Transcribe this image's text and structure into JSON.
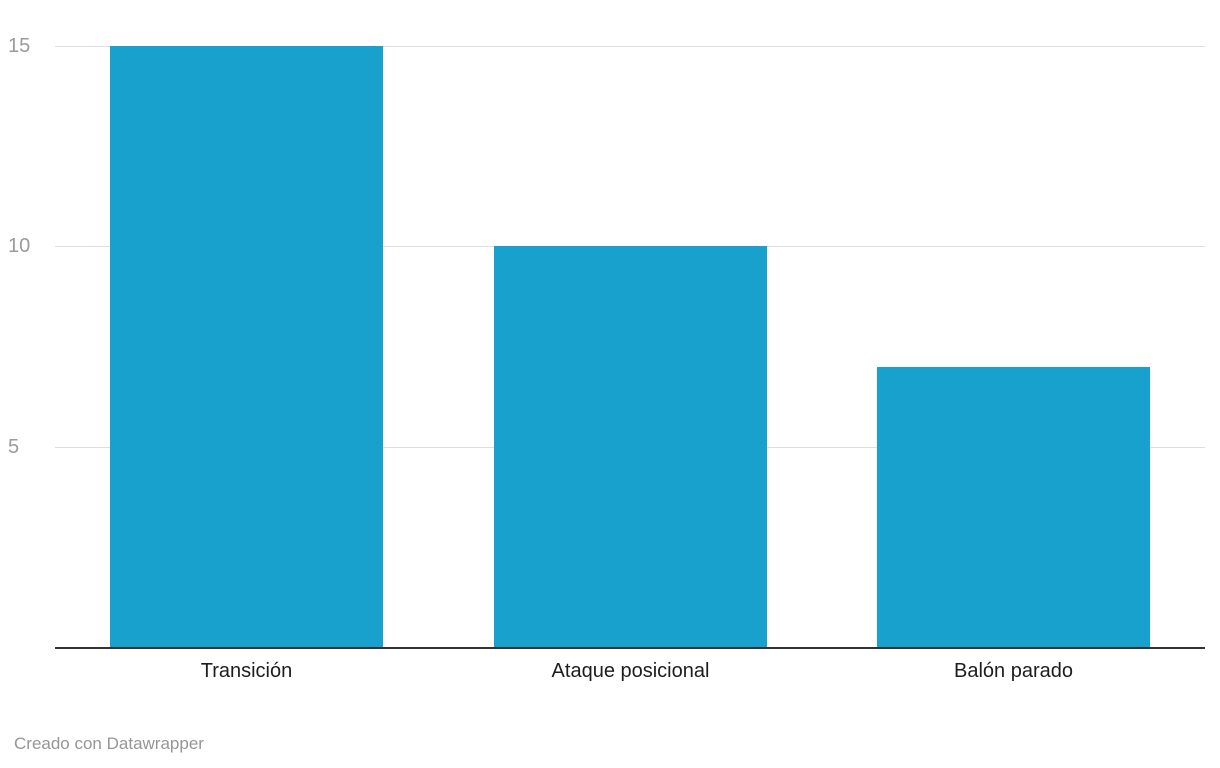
{
  "chart_data": {
    "type": "bar",
    "categories": [
      "Transición",
      "Ataque posicional",
      "Balón parado"
    ],
    "values": [
      15,
      10,
      7
    ],
    "title": "",
    "xlabel": "",
    "ylabel": "",
    "ylim": [
      0,
      15
    ],
    "yticks": [
      5,
      10,
      15
    ],
    "grid": true,
    "legend": false,
    "bar_width_ratio": 0.712
  },
  "colors": {
    "bar": "#18a1cd",
    "gridline": "#dedede",
    "baseline": "#333333",
    "tick_label": "#9b9b9b",
    "category_label": "#1d1d1d",
    "footer": "#969696",
    "background": "#ffffff"
  },
  "footer": {
    "credit": "Creado con Datawrapper"
  }
}
